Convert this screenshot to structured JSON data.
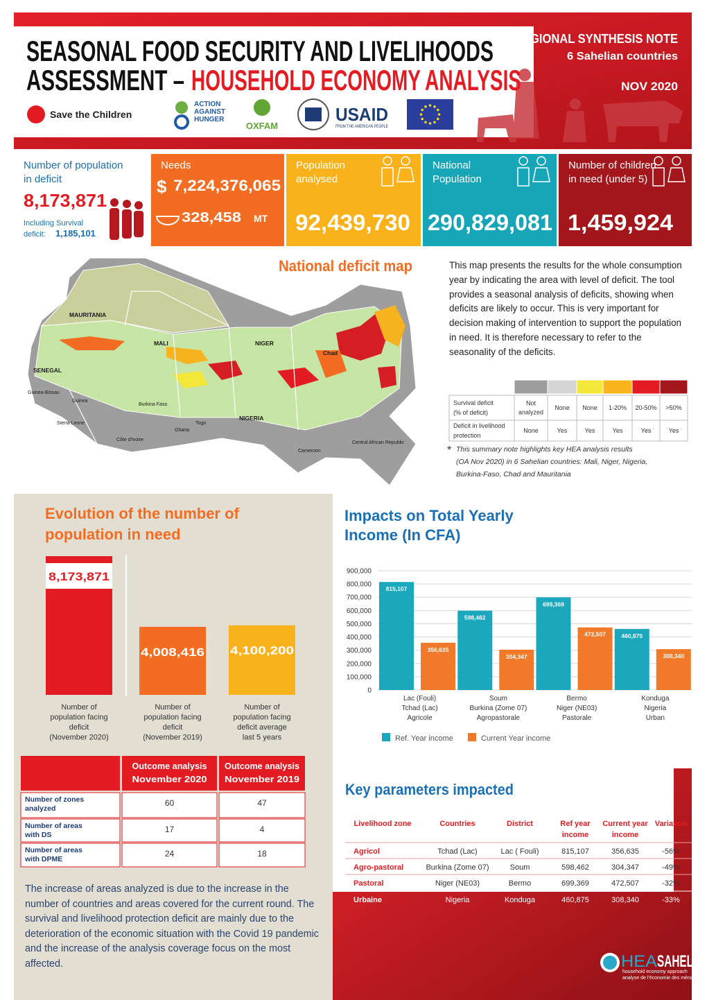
{
  "header": {
    "title_line1": "SEASONAL FOOD SECURITY AND LIVELIHOODS",
    "title_line2_start": "ASSESSMENT –",
    "title_line2_end": "HOUSEHOLD ECONOMY ANALYSIS",
    "note_title": "REGIONAL SYNTHESIS NOTE",
    "note_subtitle": "6 Sahelian countries",
    "date": "NOV 2020",
    "logos": {
      "save": "Save the Children",
      "aah": [
        "ACTION",
        "AGAINST",
        "HUNGER"
      ],
      "oxfam": "OXFAM",
      "usaid": "USAID",
      "usaid_tagline": "FROM THE AMERICAN PEOPLE"
    }
  },
  "kpis": [
    {
      "label": [
        "Number of population",
        "in deficit"
      ],
      "value": "8,173,871",
      "note": [
        "Including Survival",
        "deficit:"
      ],
      "note_value": "1,185,101",
      "color": "#ffffff"
    },
    {
      "label": [
        "Needs"
      ],
      "currency": "$",
      "value": "7,224,376,065",
      "value2": "328,458",
      "unit": "MT",
      "color": "#f26d21"
    },
    {
      "label": [
        "Population",
        "analysed"
      ],
      "value": "92,439,730",
      "color": "#f9b21b"
    },
    {
      "label": [
        "National",
        "Population"
      ],
      "value": "290,829,081",
      "color": "#17a6b8"
    },
    {
      "label": [
        "Number of children",
        "in need (under 5)"
      ],
      "value": "1,459,924",
      "color": "#a3161b"
    }
  ],
  "map": {
    "title": "National deficit map",
    "description": "This map presents the results for the whole consumption year by indicating the area with level of deficit. The tool provides a seasonal analysis of deficits, showing when deficits are likely to occur. This is very important for decision making of intervention to support the population in need. It is therefore necessary to refer to the seasonality of the deficits.",
    "countries": [
      "MAURITANIA",
      "MALI",
      "NIGER",
      "Chad",
      "SENEGAL",
      "Guinea-Bissau",
      "Guinea",
      "Sierra Leone",
      "Burkina Faso",
      "Togo",
      "Ghana",
      "NIGERIA",
      "Côte d'Ivoire",
      "Cameroon",
      "Central African Republic"
    ],
    "legend": {
      "colors": [
        "#9d9d9d",
        "#d4d4d4",
        "#f3e73a",
        "#fbb51c",
        "#e31c23",
        "#a3161b"
      ],
      "rows": [
        {
          "label": [
            "Survival deficit",
            "(% of deficit)"
          ],
          "cells": [
            [
              "Not",
              "analyzed"
            ],
            [
              "None"
            ],
            [
              "None"
            ],
            [
              "1-20%"
            ],
            [
              "20-50%"
            ],
            [
              ">50%"
            ]
          ]
        },
        {
          "label": [
            "Deficit in livelihood",
            "protection"
          ],
          "cells": [
            [
              "None"
            ],
            [
              "Yes"
            ],
            [
              "Yes"
            ],
            [
              "Yes"
            ],
            [
              "Yes"
            ],
            [
              "Yes"
            ]
          ]
        }
      ]
    },
    "footnote_mark": "*",
    "footnote": [
      "This summary note highlights key HEA analysis results",
      "(OA Nov 2020) in 6 Sahelian countries: Mali, Niger, Nigeria,",
      "Burkina-Faso, Chad and Mauritania"
    ]
  },
  "chart_data": [
    {
      "type": "bar",
      "title": [
        "Evolution of the number of",
        "population in need"
      ],
      "categories": [
        [
          "Number of",
          "population facing",
          "deficit",
          "(November 2020)"
        ],
        [
          "Number of",
          "population facing",
          "deficit",
          "(November 2019)"
        ],
        [
          "Number of",
          "population facing",
          "deficit average",
          "last 5 years"
        ]
      ],
      "values": [
        8173871,
        4008416,
        4100200
      ],
      "value_labels": [
        "8,173,871",
        "4,008,416",
        "4,100,200"
      ],
      "colors": [
        "#e31c23",
        "#f26d21",
        "#f9b21b"
      ]
    },
    {
      "type": "grouped_bar",
      "title": [
        "Impacts on Total Yearly",
        "Income (In CFA)"
      ],
      "categories": [
        [
          "Lac (Fouli)",
          "Tchad (Lac)",
          "Agricole"
        ],
        [
          "Soum",
          "Burkina (Zome 07)",
          "Agropastorale"
        ],
        [
          "Bermo",
          "Niger (NE03)",
          "Pastorale"
        ],
        [
          "Konduga",
          "Nigeria",
          "Urban"
        ]
      ],
      "series": [
        {
          "name": "Ref. Year income",
          "color": "#1ba8bd",
          "values": [
            815107,
            598462,
            699369,
            460875
          ],
          "value_labels": [
            "815,107",
            "598,462",
            "699,369",
            "460,875"
          ]
        },
        {
          "name": "Current Year income",
          "color": "#f07a2a",
          "values": [
            356635,
            304347,
            472507,
            308340
          ],
          "value_labels": [
            "356,635",
            "304,347",
            "472,507",
            "308,340"
          ]
        }
      ],
      "ylim": [
        0,
        900000
      ],
      "yticks": [
        0,
        {
          "value": 100000,
          "label": "100,000"
        },
        {
          "value": 200000,
          "label": "200,000"
        },
        {
          "value": 300000,
          "label": "300,000"
        },
        {
          "value": 400000,
          "label": "400,000"
        },
        {
          "value": 500000,
          "label": "500,000"
        },
        {
          "value": 600000,
          "label": "600,000"
        },
        {
          "value": 700000,
          "label": "700,000"
        },
        {
          "value": 800000,
          "label": "800,000"
        },
        {
          "value": 900000,
          "label": "900,000"
        }
      ],
      "grid": true
    }
  ],
  "outcome_table": {
    "columns": [
      [
        "Outcome analysis",
        "November 2020"
      ],
      [
        "Outcome analysis",
        "November 2019"
      ]
    ],
    "rows": [
      {
        "label": [
          "Number of zones",
          "analyzed"
        ],
        "values": [
          "60",
          "47"
        ]
      },
      {
        "label": [
          "Number of areas",
          "with DS"
        ],
        "values": [
          "17",
          "4"
        ]
      },
      {
        "label": [
          "Number of areas",
          "with DPME"
        ],
        "values": [
          "24",
          "18"
        ]
      }
    ],
    "note": "The increase of areas analyzed is due to the increase in the number of countries and areas covered for the current round. The survival and livelihood protection deficit are mainly due to the deterioration of the economic situation with the Covid 19 pandemic and the increase of the analysis coverage focus on the most affected."
  },
  "key_parameters": {
    "title": "Key parameters impacted",
    "columns": [
      [
        "Livelihood zone"
      ],
      [
        "Countries"
      ],
      [
        "District"
      ],
      [
        "Ref year",
        "income"
      ],
      [
        "Current year",
        "income"
      ],
      [
        "Variation"
      ]
    ],
    "rows": [
      [
        "Agricol",
        "Tchad (Lac)",
        "Lac ( Fouli)",
        "815,107",
        "356,635",
        "-56%"
      ],
      [
        "Agro-pastoral",
        "Burkina (Zome 07)",
        "Soum",
        "598,462",
        "304,347",
        "-49%"
      ],
      [
        "Pastoral",
        "Niger (NE03)",
        "Bermo",
        "699,369",
        "472,507",
        "-32%"
      ],
      [
        "Urbaine",
        "Nigeria",
        "Konduga",
        "460,875",
        "308,340",
        "-33%"
      ]
    ]
  },
  "footer": {
    "brand_a": "HEA",
    "brand_b": "SAHEL",
    "tagline": "household economy approach",
    "tagline_fr": "analyse de l'économie des ménages"
  }
}
